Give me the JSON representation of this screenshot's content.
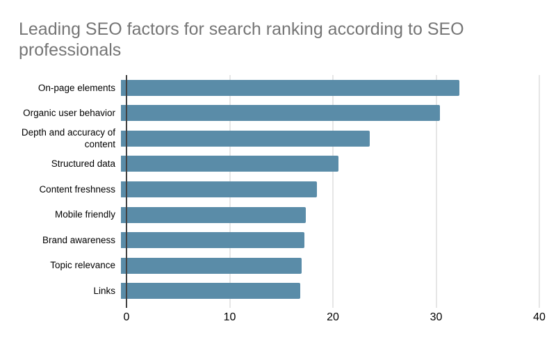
{
  "title": {
    "lines": [
      "Leading SEO factors for search ranking according to SEO",
      "professionals"
    ]
  },
  "chart_data": {
    "type": "bar",
    "orientation": "horizontal",
    "title": "Leading SEO factors for search ranking according to SEO professionals",
    "categories": [
      "On-page elements",
      "Organic user behavior",
      "Depth and accuracy of content",
      "Structured data",
      "Content freshness",
      "Mobile friendly",
      "Brand awareness",
      "Topic relevance",
      "Links"
    ],
    "values": [
      32.8,
      30.9,
      24.1,
      21.1,
      19,
      17.9,
      17.8,
      17.5,
      17.4
    ],
    "xlabel": "",
    "ylabel": "",
    "xlim": [
      0,
      40
    ],
    "xticks": [
      0,
      10,
      20,
      30,
      40
    ],
    "grid": "vertical-only",
    "legend": "none",
    "colors": {
      "bar": "#5A8CA8",
      "gridline": "#CCCCCC",
      "axis": "#424242",
      "title_text": "#757575",
      "label_text": "#000000",
      "tick_text": "#000000",
      "background": "#FFFFFF"
    }
  }
}
